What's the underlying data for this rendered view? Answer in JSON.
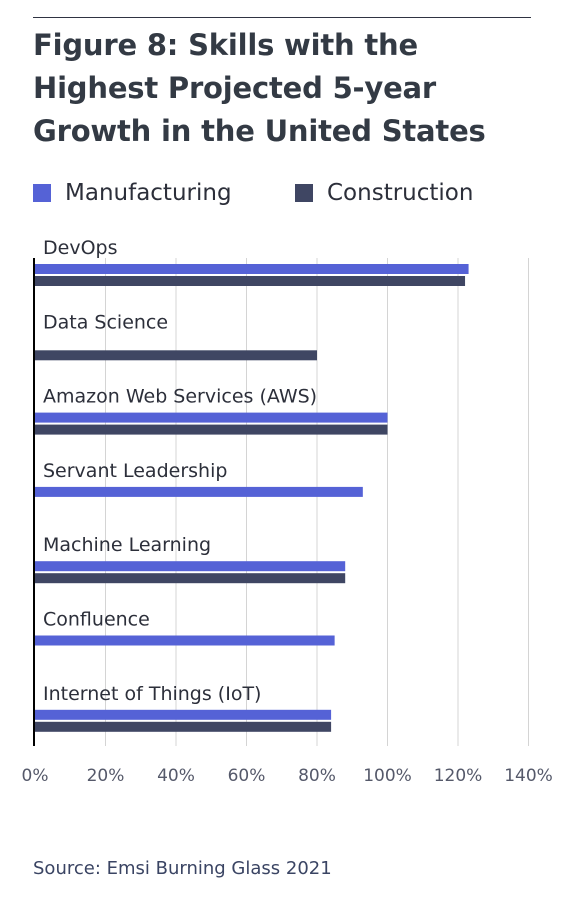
{
  "title": "Figure 8: Skills with the Highest Projected 5-year Growth in the United States",
  "source": "Source: Emsi Burning Glass 2021",
  "colors": {
    "manufacturing": "#5562d6",
    "construction": "#3f4663",
    "grid": "#d4d4d4",
    "axis": "#000000"
  },
  "chart_data": {
    "type": "bar",
    "orientation": "horizontal",
    "title": "Figure 8: Skills with the Highest Projected 5-year Growth in the United States",
    "xlabel": "",
    "ylabel": "",
    "xlim": [
      0,
      140
    ],
    "x_ticks": [
      "0%",
      "20%",
      "40%",
      "60%",
      "80%",
      "100%",
      "120%",
      "140%"
    ],
    "x_tick_values": [
      0,
      20,
      40,
      60,
      80,
      100,
      120,
      140
    ],
    "grid": true,
    "legend_position": "top",
    "categories": [
      "DevOps",
      "Data Science",
      "Amazon Web Services (AWS)",
      "Servant Leadership",
      "Machine Learning",
      "Confluence",
      "Internet of Things (IoT)"
    ],
    "series": [
      {
        "name": "Manufacturing",
        "color": "#5562d6",
        "values": [
          123,
          null,
          100,
          93,
          88,
          85,
          84
        ]
      },
      {
        "name": "Construction",
        "color": "#3f4663",
        "values": [
          122,
          80,
          100,
          null,
          88,
          null,
          84
        ]
      }
    ]
  }
}
